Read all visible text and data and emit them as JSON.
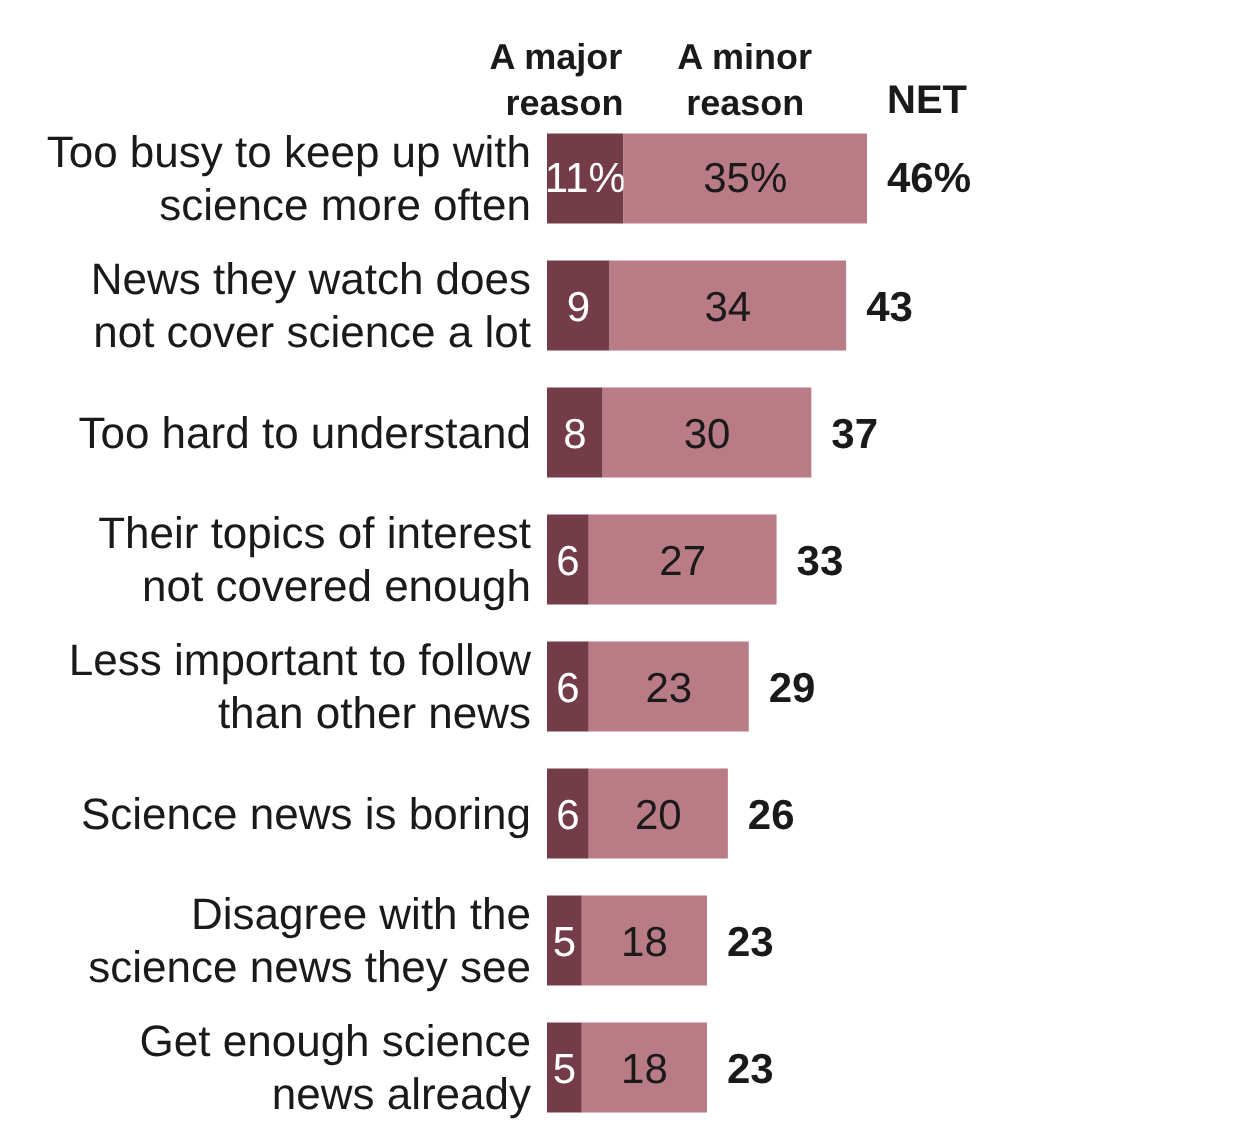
{
  "chart_data": {
    "type": "bar",
    "orientation": "horizontal",
    "stacked": true,
    "categories": [
      "Too busy to keep up with\nscience more often",
      "News they watch does\nnot cover science a lot",
      "Too hard to understand",
      "Their topics of interest\nnot covered enough",
      "Less important to follow\nthan other news",
      "Science news is boring",
      "Disagree with the\nscience news they see",
      "Get enough science\nnews already"
    ],
    "series": [
      {
        "name": "A major\nreason",
        "color": "#733c48",
        "values": [
          11,
          9,
          8,
          6,
          6,
          6,
          5,
          5
        ],
        "value_labels": [
          "11%",
          "9",
          "8",
          "6",
          "6",
          "6",
          "5",
          "5"
        ]
      },
      {
        "name": "A minor\nreason",
        "color": "#b97b86",
        "values": [
          35,
          34,
          30,
          27,
          23,
          20,
          18,
          18
        ],
        "value_labels": [
          "35%",
          "34",
          "30",
          "27",
          "23",
          "20",
          "18",
          "18"
        ]
      }
    ],
    "totals": [
      "46%",
      "43",
      "37",
      "33",
      "29",
      "26",
      "23",
      "23"
    ],
    "annotations": [
      "NET"
    ],
    "legend": "top",
    "tick_labels": "y",
    "grid": false
  }
}
